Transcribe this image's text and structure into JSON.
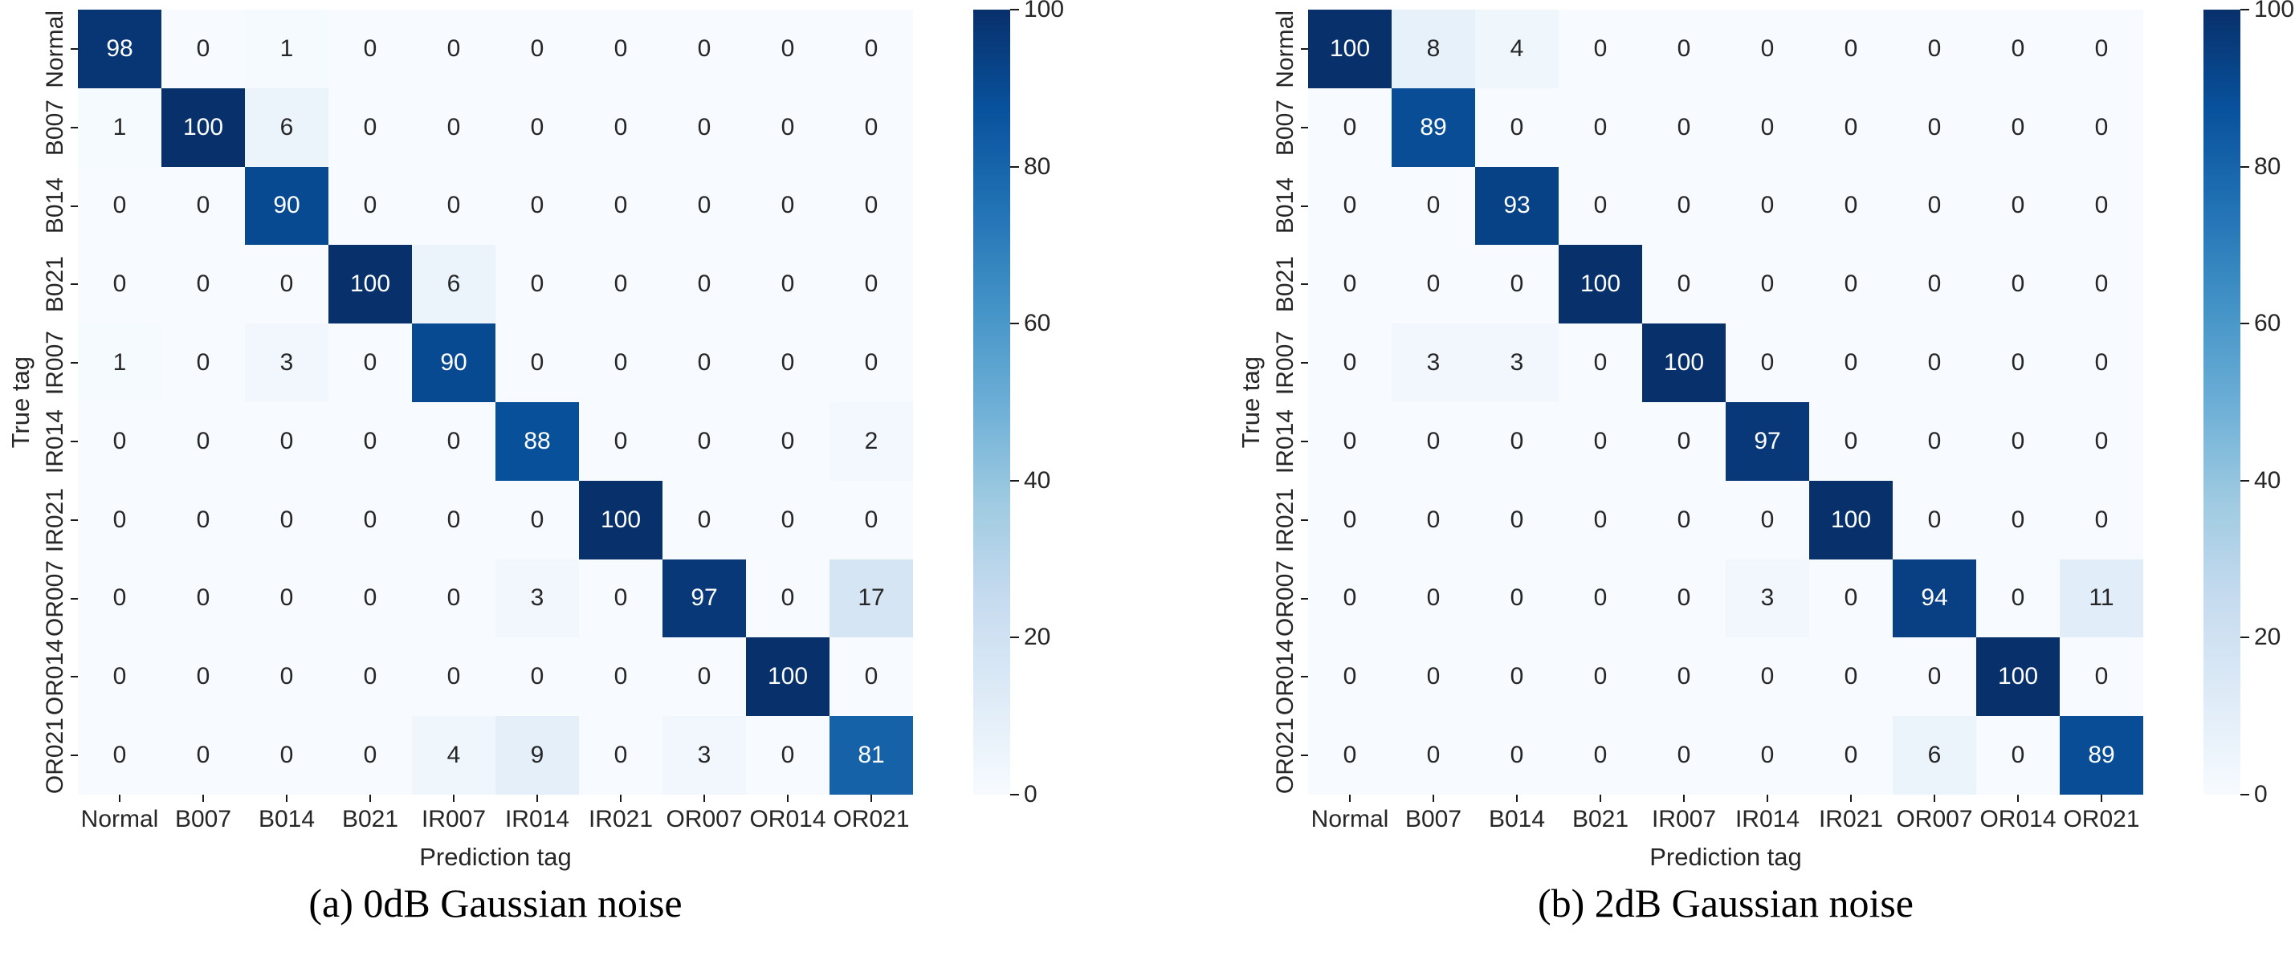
{
  "chart_data": [
    {
      "type": "heatmap",
      "title": "(a) 0dB Gaussian noise",
      "xlabel": "Prediction tag",
      "ylabel": "True tag",
      "x_categories": [
        "Normal",
        "B007",
        "B014",
        "B021",
        "IR007",
        "IR014",
        "IR021",
        "OR007",
        "OR014",
        "OR021"
      ],
      "y_categories": [
        "Normal",
        "B007",
        "B014",
        "B021",
        "IR007",
        "IR014",
        "IR021",
        "OR007",
        "OR014",
        "OR021"
      ],
      "values": [
        [
          98,
          0,
          1,
          0,
          0,
          0,
          0,
          0,
          0,
          0
        ],
        [
          1,
          100,
          6,
          0,
          0,
          0,
          0,
          0,
          0,
          0
        ],
        [
          0,
          0,
          90,
          0,
          0,
          0,
          0,
          0,
          0,
          0
        ],
        [
          0,
          0,
          0,
          100,
          6,
          0,
          0,
          0,
          0,
          0
        ],
        [
          1,
          0,
          3,
          0,
          90,
          0,
          0,
          0,
          0,
          0
        ],
        [
          0,
          0,
          0,
          0,
          0,
          88,
          0,
          0,
          0,
          2
        ],
        [
          0,
          0,
          0,
          0,
          0,
          0,
          100,
          0,
          0,
          0
        ],
        [
          0,
          0,
          0,
          0,
          0,
          3,
          0,
          97,
          0,
          17
        ],
        [
          0,
          0,
          0,
          0,
          0,
          0,
          0,
          0,
          100,
          0
        ],
        [
          0,
          0,
          0,
          0,
          4,
          9,
          0,
          3,
          0,
          81
        ]
      ],
      "vmin": 0,
      "vmax": 100,
      "colormap": "Blues",
      "colorbar_ticks": [
        0,
        20,
        40,
        60,
        80,
        100
      ],
      "legend_position": "right-colorbar",
      "grid": false
    },
    {
      "type": "heatmap",
      "title": "(b) 2dB Gaussian noise",
      "xlabel": "Prediction tag",
      "ylabel": "True tag",
      "x_categories": [
        "Normal",
        "B007",
        "B014",
        "B021",
        "IR007",
        "IR014",
        "IR021",
        "OR007",
        "OR014",
        "OR021"
      ],
      "y_categories": [
        "Normal",
        "B007",
        "B014",
        "B021",
        "IR007",
        "IR014",
        "IR021",
        "OR007",
        "OR014",
        "OR021"
      ],
      "values": [
        [
          100,
          8,
          4,
          0,
          0,
          0,
          0,
          0,
          0,
          0
        ],
        [
          0,
          89,
          0,
          0,
          0,
          0,
          0,
          0,
          0,
          0
        ],
        [
          0,
          0,
          93,
          0,
          0,
          0,
          0,
          0,
          0,
          0
        ],
        [
          0,
          0,
          0,
          100,
          0,
          0,
          0,
          0,
          0,
          0
        ],
        [
          0,
          3,
          3,
          0,
          100,
          0,
          0,
          0,
          0,
          0
        ],
        [
          0,
          0,
          0,
          0,
          0,
          97,
          0,
          0,
          0,
          0
        ],
        [
          0,
          0,
          0,
          0,
          0,
          0,
          100,
          0,
          0,
          0
        ],
        [
          0,
          0,
          0,
          0,
          0,
          3,
          0,
          94,
          0,
          11
        ],
        [
          0,
          0,
          0,
          0,
          0,
          0,
          0,
          0,
          100,
          0
        ],
        [
          0,
          0,
          0,
          0,
          0,
          0,
          0,
          6,
          0,
          89
        ]
      ],
      "vmin": 0,
      "vmax": 100,
      "colormap": "Blues",
      "colorbar_ticks": [
        0,
        20,
        40,
        60,
        80,
        100
      ],
      "legend_position": "right-colorbar",
      "grid": false
    }
  ],
  "colors": {
    "cmap_low": "#f7fbff",
    "cmap_high": "#08306b",
    "annot_dark": "#262626",
    "annot_light": "#ffffff",
    "tick_mark": "#1a1a1a"
  }
}
